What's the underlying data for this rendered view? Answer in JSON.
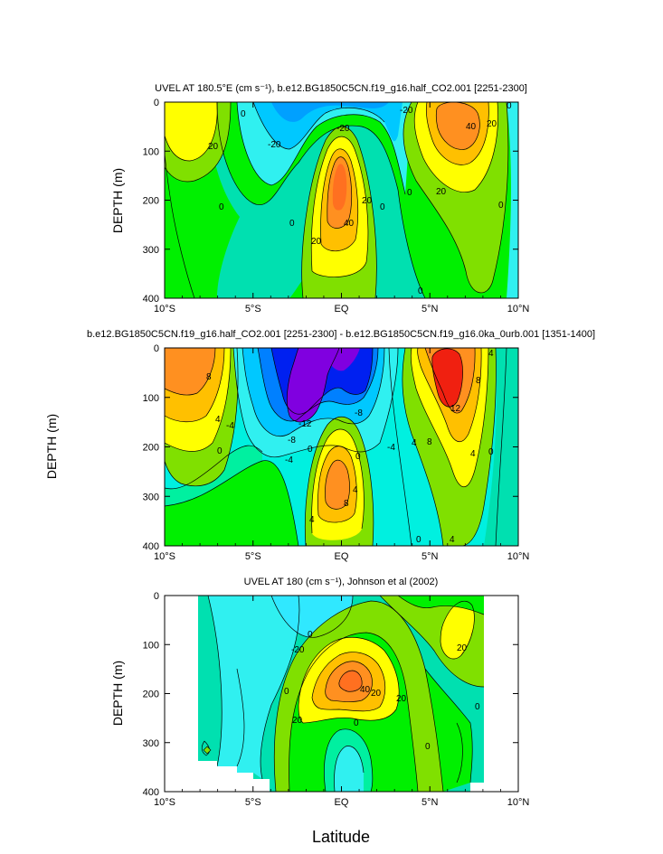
{
  "chart_data": [
    {
      "type": "contour",
      "title": "UVEL AT 180.5°E (cm s⁻¹), b.e12.BG1850C5CN.f19_g16.half_CO2.001 [2251-2300]",
      "ylabel": "DEPTH (m)",
      "xticks": [
        "10°S",
        "5°S",
        "EQ",
        "5°N",
        "10°N"
      ],
      "yticks": [
        "0",
        "100",
        "200",
        "300",
        "400"
      ],
      "xlim": [
        -10,
        10
      ],
      "ylim": [
        0,
        400
      ],
      "contour_labels": [
        "0",
        "20",
        "-20",
        "0",
        "-20",
        "20",
        "40",
        "0",
        "-20",
        "0",
        "20",
        "40",
        "0",
        "0",
        "0",
        "20",
        "20",
        "0"
      ]
    },
    {
      "type": "contour",
      "title": "b.e12.BG1850C5CN.f19_g16.half_CO2.001 [2251-2300] - b.e12.BG1850C5CN.f19_g16.0ka_0urb.001 [1351-1400]",
      "ylabel": "DEPTH (m)",
      "xticks": [
        "10°S",
        "5°S",
        "EQ",
        "5°N",
        "10°N"
      ],
      "yticks": [
        "0",
        "100",
        "200",
        "300",
        "400"
      ],
      "xlim": [
        -10,
        10
      ],
      "ylim": [
        0,
        400
      ],
      "contour_labels": [
        "8",
        "4",
        "0",
        "-4",
        "-8",
        "-12",
        "-8",
        "-4",
        "0",
        "4",
        "8",
        "4",
        "0",
        "-4",
        "4",
        "8",
        "12",
        "8",
        "4",
        "0",
        "4",
        "0",
        "4"
      ]
    },
    {
      "type": "contour",
      "title": "UVEL AT 180 (cm s⁻¹), Johnson et al (2002)",
      "ylabel": "DEPTH (m)",
      "xlabel": "Latitude",
      "xticks": [
        "10°S",
        "5°S",
        "EQ",
        "5°N",
        "10°N"
      ],
      "yticks": [
        "0",
        "100",
        "200",
        "300",
        "400"
      ],
      "xlim": [
        -10,
        10
      ],
      "ylim": [
        0,
        400
      ],
      "contour_labels": [
        "-20",
        "0",
        "40",
        "20",
        "20",
        "0",
        "0",
        "20",
        "0",
        "20",
        "0"
      ]
    }
  ]
}
